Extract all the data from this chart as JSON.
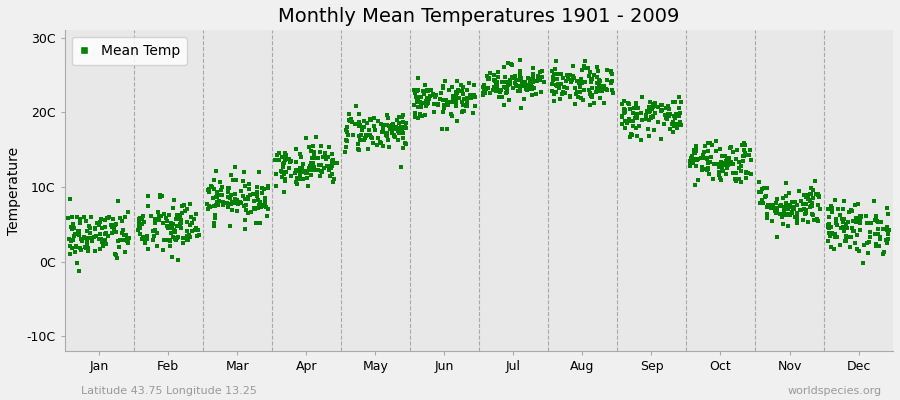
{
  "title": "Monthly Mean Temperatures 1901 - 2009",
  "ylabel": "Temperature",
  "xlabel_months": [
    "Jan",
    "Feb",
    "Mar",
    "Apr",
    "May",
    "Jun",
    "Jul",
    "Aug",
    "Sep",
    "Oct",
    "Nov",
    "Dec"
  ],
  "ytick_labels": [
    "-10C",
    "0C",
    "10C",
    "20C",
    "30C"
  ],
  "ytick_values": [
    -10,
    0,
    10,
    20,
    30
  ],
  "ylim": [
    -12,
    31
  ],
  "dot_color": "#008000",
  "figure_facecolor": "#f0f0f0",
  "plot_bg_color": "#e8e8e8",
  "legend_label": "Mean Temp",
  "watermark_left": "Latitude 43.75 Longitude 13.25",
  "watermark_right": "worldspecies.org",
  "monthly_means": [
    3.5,
    4.5,
    8.5,
    13.0,
    17.5,
    21.5,
    24.0,
    23.5,
    19.5,
    13.5,
    7.5,
    4.5
  ],
  "monthly_stds": [
    1.8,
    2.0,
    1.5,
    1.4,
    1.4,
    1.3,
    1.2,
    1.3,
    1.4,
    1.5,
    1.5,
    1.8
  ],
  "n_years": 109,
  "seed": 42,
  "marker_size": 3,
  "title_fontsize": 14,
  "axis_fontsize": 10,
  "tick_fontsize": 9,
  "watermark_fontsize": 8,
  "dashed_line_color": "#999999",
  "spine_color": "#aaaaaa"
}
